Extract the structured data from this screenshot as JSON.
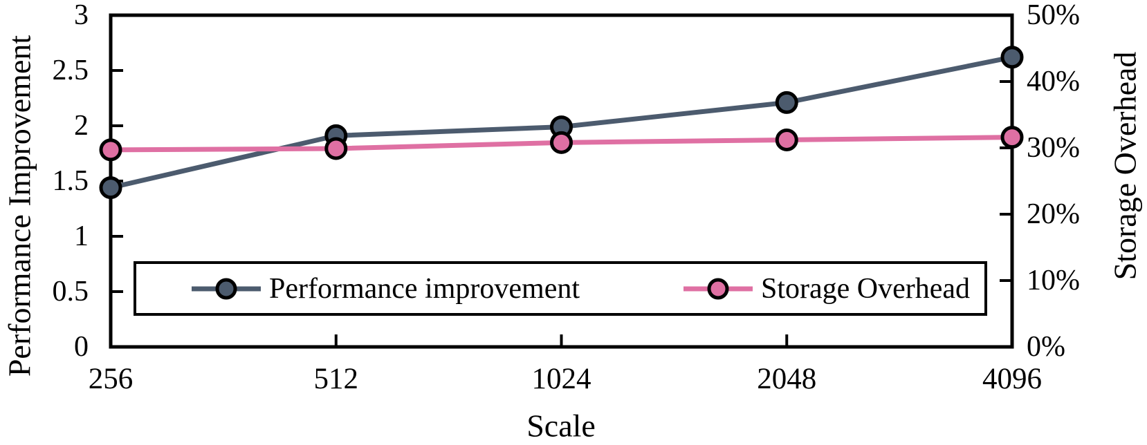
{
  "chart_data": {
    "type": "line",
    "title": "",
    "xlabel": "Scale",
    "categories": [
      "256",
      "512",
      "1024",
      "2048",
      "4096"
    ],
    "series": [
      {
        "name": "Performance improvement",
        "axis": "left",
        "color": "#4c5b6e",
        "values": [
          1.44,
          1.91,
          1.99,
          2.21,
          2.62
        ]
      },
      {
        "name": "Storage Overhead",
        "axis": "right",
        "color": "#df70a3",
        "values": [
          29.7,
          29.9,
          30.8,
          31.2,
          31.6
        ]
      }
    ],
    "left_axis": {
      "title": "Performance Improvement",
      "min": 0,
      "max": 3,
      "tick_labels": [
        "0",
        "0.5",
        "1",
        "1.5",
        "2",
        "2.5",
        "3"
      ]
    },
    "right_axis": {
      "title": "Storage Overhead",
      "min": 0,
      "max": 50,
      "tick_labels": [
        "0%",
        "10%",
        "20%",
        "30%",
        "40%",
        "50%"
      ]
    },
    "legend": {
      "position": "bottom-inside",
      "entries": [
        "Performance improvement",
        "Storage Overhead"
      ]
    },
    "grid": false,
    "axis_color": "#000000",
    "marker_outline_color": "#000000"
  }
}
